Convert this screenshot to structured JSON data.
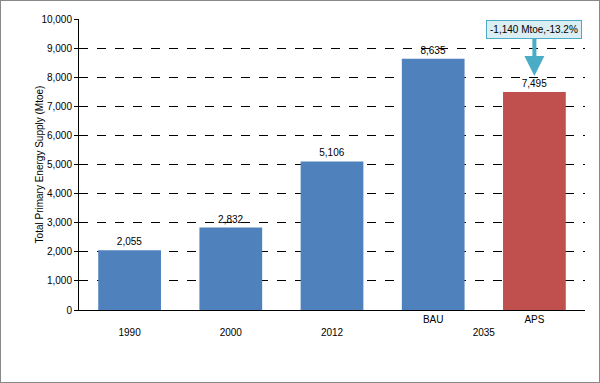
{
  "chart_data": {
    "type": "bar",
    "y_label": "Total Primary Energy Supply (Mtoe)",
    "categories": [
      "1990",
      "2000",
      "2012",
      "BAU",
      "APS"
    ],
    "groups": [
      {
        "label": "2035",
        "categories": [
          "BAU",
          "APS"
        ]
      }
    ],
    "values": [
      2055,
      2832,
      5106,
      8635,
      7495
    ],
    "value_labels": [
      "2,055",
      "2,832",
      "5,106",
      "8,635",
      "7,495"
    ],
    "data_labels": true,
    "colors": [
      "#4F81BD",
      "#4F81BD",
      "#4F81BD",
      "#4F81BD",
      "#C0504D"
    ],
    "ylim": [
      0,
      10000
    ],
    "yticks": [
      0,
      {
        "value": 1000,
        "label": "1,000"
      },
      {
        "value": 2000,
        "label": "2,000"
      },
      {
        "value": 3000,
        "label": "3,000"
      },
      {
        "value": 4000,
        "label": "4,000"
      },
      {
        "value": 5000,
        "label": "5,000"
      },
      {
        "value": 6000,
        "label": "6,000"
      },
      {
        "value": 7000,
        "label": "7,000"
      },
      {
        "value": 8000,
        "label": "8,000"
      },
      {
        "value": 9000,
        "label": "9,000"
      },
      {
        "value": 10000,
        "label": "10,000"
      }
    ],
    "grid": true,
    "annotations": [
      {
        "text": "-1,140 Mtoe,-13.2%",
        "category": "APS"
      }
    ]
  }
}
